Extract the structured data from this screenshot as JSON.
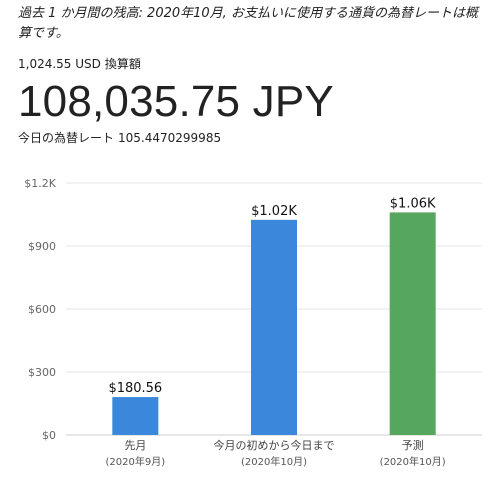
{
  "header": {
    "note": "過去 1 か月間の残高: 2020年10月, お支払いに使用する通貨の為替レートは概算です。",
    "usd_amount": "1,024.55 USD",
    "usd_label": "換算額",
    "converted_amount": "108,035.75 JPY",
    "rate_label": "今日の為替レート",
    "rate_value": "105.4470299985"
  },
  "chart_data": {
    "type": "bar",
    "title": "",
    "xlabel": "",
    "ylabel": "",
    "ylim": [
      0,
      1200
    ],
    "yticks": [
      0,
      300,
      600,
      900,
      1200
    ],
    "ytick_labels": [
      "$0",
      "$300",
      "$600",
      "$900",
      "$1.2K"
    ],
    "grid": true,
    "categories": [
      {
        "line1": "先月",
        "line2": "(2020年9月)"
      },
      {
        "line1": "今月の初めから今日まで",
        "line2": "(2020年10月)"
      },
      {
        "line1": "予測",
        "line2": "(2020年10月)"
      }
    ],
    "values": [
      180.56,
      1024.55,
      1060
    ],
    "value_labels": [
      "$180.56",
      "$1.02K",
      "$1.06K"
    ],
    "colors": [
      "#3b87db",
      "#3b87db",
      "#57a65d"
    ]
  }
}
